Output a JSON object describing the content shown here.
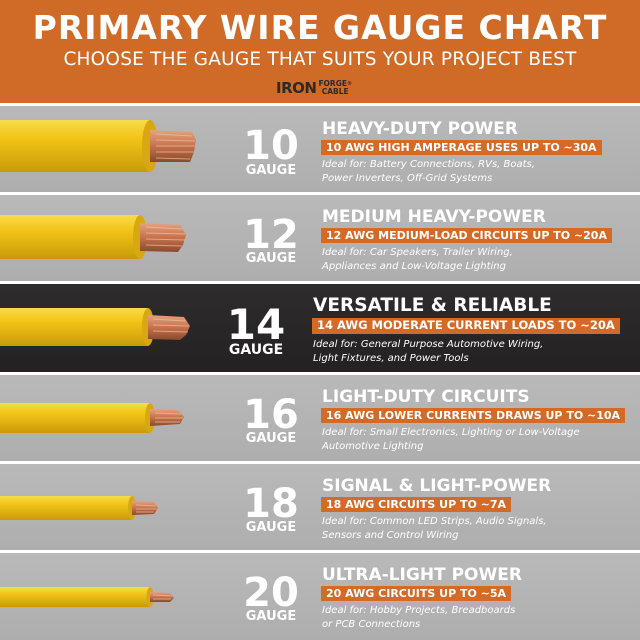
{
  "header": {
    "title": "PRIMARY WIRE GAUGE CHART",
    "subtitle": "CHOOSE THE GAUGE THAT SUITS YOUR PROJECT BEST",
    "logo_main": "IRON",
    "logo_top": "FORGE",
    "logo_bottom": "CABLE",
    "logo_mark": "®"
  },
  "colors": {
    "header_orange": "#cf6a27",
    "badge_orange": "#d46a26",
    "row_gray": "#b4b4b4",
    "row_highlight": "#272525",
    "wire_yellow": "#f2c417",
    "copper": "#c6724c"
  },
  "rows": [
    {
      "gauge": "10",
      "gauge_word": "GAUGE",
      "heading": "HEAVY-DUTY POWER",
      "badge": "10 AWG HIGH AMPERAGE USES UP TO ~30A",
      "ideal_line1": "Ideal for: Battery Connections, RVs, Boats,",
      "ideal_line2": "Power Inverters, Off-Grid Systems"
    },
    {
      "gauge": "12",
      "gauge_word": "GAUGE",
      "heading": "MEDIUM HEAVY-POWER",
      "badge": "12 AWG MEDIUM-LOAD CIRCUITS UP TO ~20A",
      "ideal_line1": "Ideal for: Car Speakers, Trailer Wiring,",
      "ideal_line2": "Appliances and Low-Voltage Lighting"
    },
    {
      "gauge": "14",
      "gauge_word": "GAUGE",
      "heading": "VERSATILE & RELIABLE",
      "badge": "14 AWG MODERATE CURRENT LOADS TO ~20A",
      "ideal_line1": "Ideal for: General Purpose Automotive Wiring,",
      "ideal_line2": "Light Fixtures, and Power Tools"
    },
    {
      "gauge": "16",
      "gauge_word": "GAUGE",
      "heading": "LIGHT-DUTY CIRCUITS",
      "badge": "16 AWG LOWER CURRENTS DRAWS UP TO ~10A",
      "ideal_line1": "Ideal for: Small Electronics, Lighting or Low-Voltage",
      "ideal_line2": "Automotive Lighting"
    },
    {
      "gauge": "18",
      "gauge_word": "GAUGE",
      "heading": "SIGNAL & LIGHT-POWER",
      "badge": "18 AWG CIRCUITS UP TO ~7A",
      "ideal_line1": "Ideal for: Common LED Strips, Audio Signals,",
      "ideal_line2": "Sensors and Control Wiring"
    },
    {
      "gauge": "20",
      "gauge_word": "GAUGE",
      "heading": "ULTRA-LIGHT POWER",
      "badge": "20 AWG CIRCUITS UP TO ~5A",
      "ideal_line1": "Ideal for: Hobby Projects, Breadboards",
      "ideal_line2": "or PCB Connections"
    }
  ]
}
